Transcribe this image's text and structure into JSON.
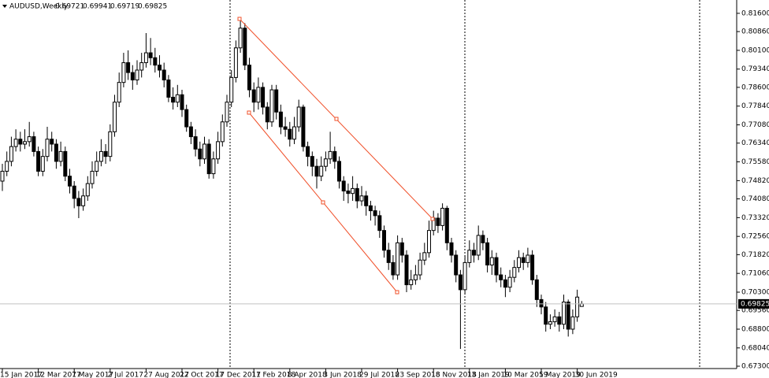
{
  "chart_data": {
    "type": "candlestick",
    "symbol": "AUDUSD,Weekly",
    "bull_color": "#ffffff",
    "bear_color": "#000000",
    "ylim": [
      0.6714,
      0.8214
    ],
    "yticks": [
      {
        "value": 0.816,
        "label": "0.81600"
      },
      {
        "value": 0.8086,
        "label": "0.80860"
      },
      {
        "value": 0.801,
        "label": "0.80100"
      },
      {
        "value": 0.7934,
        "label": "0.79340"
      },
      {
        "value": 0.786,
        "label": "0.78600"
      },
      {
        "value": 0.7784,
        "label": "0.77840"
      },
      {
        "value": 0.7708,
        "label": "0.77080"
      },
      {
        "value": 0.7634,
        "label": "0.76340"
      },
      {
        "value": 0.7558,
        "label": "0.75580"
      },
      {
        "value": 0.7482,
        "label": "0.74820"
      },
      {
        "value": 0.7408,
        "label": "0.74080"
      },
      {
        "value": 0.7332,
        "label": "0.73320"
      },
      {
        "value": 0.7256,
        "label": "0.72560"
      },
      {
        "value": 0.7182,
        "label": "0.71820"
      },
      {
        "value": 0.7106,
        "label": "0.71060"
      },
      {
        "value": 0.703,
        "label": "0.70300"
      },
      {
        "value": 0.6956,
        "label": "0.69560"
      },
      {
        "value": 0.688,
        "label": "0.68800"
      },
      {
        "value": 0.6804,
        "label": "0.68040"
      },
      {
        "value": 0.673,
        "label": "0.67300"
      }
    ],
    "xticks": [
      {
        "value": 0,
        "label": "15 Jan 2017"
      },
      {
        "value": 8,
        "label": "12 Mar 2017"
      },
      {
        "value": 16,
        "label": "7 May 2017"
      },
      {
        "value": 24,
        "label": "2 Jul 2017"
      },
      {
        "value": 32,
        "label": "27 Aug 2017"
      },
      {
        "value": 40,
        "label": "22 Oct 2017"
      },
      {
        "value": 48,
        "label": "17 Dec 2017"
      },
      {
        "value": 56,
        "label": "11 Feb 2018"
      },
      {
        "value": 64,
        "label": "8 Apr 2018"
      },
      {
        "value": 72,
        "label": "3 Jun 2018"
      },
      {
        "value": 80,
        "label": "29 Jul 2018"
      },
      {
        "value": 88,
        "label": "23 Sep 2018"
      },
      {
        "value": 96,
        "label": "18 Nov 2018"
      },
      {
        "value": 104,
        "label": "13 Jan 2019"
      },
      {
        "value": 112,
        "label": "10 Mar 2019"
      },
      {
        "value": 120,
        "label": "5 May 2019"
      },
      {
        "value": 128,
        "label": "30 Jun 2019"
      }
    ],
    "open": [
      0.748,
      0.752,
      0.756,
      0.762,
      0.765,
      0.763,
      0.764,
      0.766,
      0.76,
      0.752,
      0.758,
      0.765,
      0.763,
      0.756,
      0.76,
      0.75,
      0.746,
      0.741,
      0.738,
      0.742,
      0.747,
      0.752,
      0.756,
      0.76,
      0.758,
      0.768,
      0.78,
      0.788,
      0.796,
      0.792,
      0.789,
      0.793,
      0.796,
      0.8,
      0.798,
      0.795,
      0.793,
      0.789,
      0.782,
      0.78,
      0.783,
      0.777,
      0.77,
      0.766,
      0.761,
      0.757,
      0.763,
      0.751,
      0.757,
      0.764,
      0.772,
      0.78,
      0.79,
      0.802,
      0.81,
      0.795,
      0.785,
      0.78,
      0.786,
      0.778,
      0.772,
      0.785,
      0.776,
      0.77,
      0.769,
      0.765,
      0.77,
      0.778,
      0.762,
      0.758,
      0.754,
      0.75,
      0.754,
      0.757,
      0.76,
      0.756,
      0.748,
      0.744,
      0.743,
      0.745,
      0.74,
      0.742,
      0.738,
      0.736,
      0.734,
      0.728,
      0.72,
      0.715,
      0.71,
      0.723,
      0.718,
      0.706,
      0.708,
      0.71,
      0.716,
      0.719,
      0.728,
      0.733,
      0.73,
      0.737,
      0.723,
      0.718,
      0.71,
      0.704,
      0.715,
      0.72,
      0.718,
      0.726,
      0.723,
      0.714,
      0.717,
      0.71,
      0.708,
      0.705,
      0.709,
      0.713,
      0.717,
      0.715,
      0.718,
      0.708,
      0.7,
      0.697,
      0.69,
      0.691,
      0.693,
      0.69,
      0.699,
      0.688,
      0.693,
      0.69721
    ],
    "high": [
      0.755,
      0.76,
      0.766,
      0.769,
      0.768,
      0.769,
      0.772,
      0.768,
      0.762,
      0.761,
      0.77,
      0.768,
      0.765,
      0.764,
      0.762,
      0.753,
      0.748,
      0.744,
      0.745,
      0.75,
      0.756,
      0.76,
      0.765,
      0.763,
      0.771,
      0.783,
      0.792,
      0.8,
      0.801,
      0.795,
      0.797,
      0.8,
      0.808,
      0.806,
      0.802,
      0.799,
      0.796,
      0.791,
      0.786,
      0.787,
      0.785,
      0.779,
      0.772,
      0.769,
      0.764,
      0.766,
      0.765,
      0.76,
      0.768,
      0.775,
      0.783,
      0.793,
      0.805,
      0.8135,
      0.812,
      0.798,
      0.788,
      0.79,
      0.788,
      0.78,
      0.787,
      0.787,
      0.779,
      0.774,
      0.772,
      0.774,
      0.781,
      0.779,
      0.764,
      0.76,
      0.757,
      0.758,
      0.76,
      0.768,
      0.762,
      0.758,
      0.75,
      0.747,
      0.75,
      0.747,
      0.746,
      0.744,
      0.74,
      0.738,
      0.736,
      0.73,
      0.723,
      0.718,
      0.726,
      0.725,
      0.72,
      0.712,
      0.714,
      0.719,
      0.723,
      0.732,
      0.736,
      0.735,
      0.739,
      0.738,
      0.725,
      0.72,
      0.712,
      0.718,
      0.724,
      0.723,
      0.73,
      0.728,
      0.725,
      0.72,
      0.719,
      0.713,
      0.71,
      0.712,
      0.716,
      0.72,
      0.719,
      0.721,
      0.72,
      0.71,
      0.702,
      0.699,
      0.694,
      0.696,
      0.695,
      0.702,
      0.7,
      0.696,
      0.704,
      0.69941
    ],
    "low": [
      0.744,
      0.75,
      0.754,
      0.76,
      0.76,
      0.761,
      0.762,
      0.758,
      0.75,
      0.75,
      0.756,
      0.76,
      0.753,
      0.754,
      0.748,
      0.743,
      0.737,
      0.733,
      0.736,
      0.74,
      0.745,
      0.75,
      0.754,
      0.755,
      0.756,
      0.766,
      0.778,
      0.786,
      0.789,
      0.785,
      0.787,
      0.79,
      0.794,
      0.795,
      0.792,
      0.79,
      0.786,
      0.78,
      0.777,
      0.778,
      0.774,
      0.768,
      0.763,
      0.758,
      0.754,
      0.755,
      0.749,
      0.749,
      0.755,
      0.762,
      0.77,
      0.778,
      0.788,
      0.8,
      0.793,
      0.782,
      0.776,
      0.777,
      0.775,
      0.769,
      0.77,
      0.773,
      0.767,
      0.766,
      0.762,
      0.763,
      0.768,
      0.76,
      0.754,
      0.75,
      0.745,
      0.748,
      0.752,
      0.755,
      0.753,
      0.745,
      0.74,
      0.739,
      0.74,
      0.737,
      0.738,
      0.734,
      0.732,
      0.73,
      0.725,
      0.717,
      0.712,
      0.708,
      0.708,
      0.715,
      0.703,
      0.704,
      0.706,
      0.708,
      0.714,
      0.717,
      0.726,
      0.727,
      0.728,
      0.72,
      0.715,
      0.707,
      0.68,
      0.702,
      0.713,
      0.715,
      0.716,
      0.72,
      0.711,
      0.71,
      0.707,
      0.705,
      0.701,
      0.703,
      0.707,
      0.711,
      0.712,
      0.713,
      0.706,
      0.697,
      0.694,
      0.687,
      0.688,
      0.689,
      0.687,
      0.688,
      0.685,
      0.686,
      0.691,
      0.69719
    ],
    "close": [
      0.752,
      0.756,
      0.762,
      0.765,
      0.763,
      0.764,
      0.766,
      0.76,
      0.752,
      0.758,
      0.765,
      0.763,
      0.756,
      0.76,
      0.75,
      0.746,
      0.741,
      0.738,
      0.742,
      0.747,
      0.752,
      0.756,
      0.76,
      0.758,
      0.768,
      0.78,
      0.788,
      0.796,
      0.792,
      0.789,
      0.793,
      0.796,
      0.8,
      0.798,
      0.795,
      0.793,
      0.789,
      0.782,
      0.78,
      0.783,
      0.777,
      0.77,
      0.766,
      0.761,
      0.757,
      0.763,
      0.751,
      0.757,
      0.764,
      0.772,
      0.78,
      0.79,
      0.802,
      0.81,
      0.795,
      0.785,
      0.78,
      0.786,
      0.778,
      0.772,
      0.785,
      0.776,
      0.77,
      0.769,
      0.765,
      0.77,
      0.778,
      0.762,
      0.758,
      0.754,
      0.75,
      0.754,
      0.757,
      0.76,
      0.756,
      0.748,
      0.744,
      0.743,
      0.745,
      0.74,
      0.742,
      0.738,
      0.736,
      0.734,
      0.728,
      0.72,
      0.715,
      0.71,
      0.723,
      0.718,
      0.706,
      0.708,
      0.71,
      0.716,
      0.719,
      0.728,
      0.733,
      0.73,
      0.737,
      0.723,
      0.718,
      0.71,
      0.704,
      0.715,
      0.72,
      0.718,
      0.726,
      0.723,
      0.714,
      0.717,
      0.71,
      0.708,
      0.705,
      0.709,
      0.713,
      0.717,
      0.715,
      0.718,
      0.708,
      0.7,
      0.697,
      0.69,
      0.691,
      0.693,
      0.69,
      0.699,
      0.688,
      0.693,
      0.701,
      0.69825
    ]
  }
}
